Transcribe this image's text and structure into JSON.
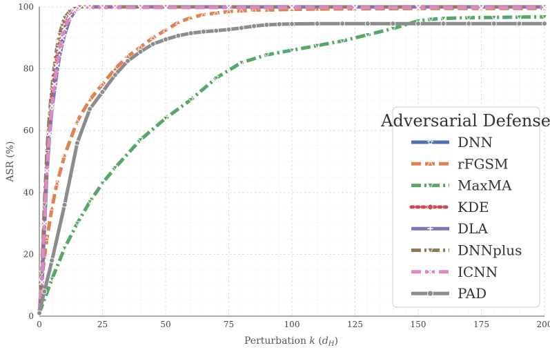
{
  "chart_data": {
    "type": "line",
    "xlabel": "Perturbation k (d_H)",
    "xlabel_parts": {
      "main": "Perturbation ",
      "var": "k",
      "open": " (",
      "sub_base": "d",
      "sub": "H",
      "close": ")"
    },
    "ylabel": "ASR (%)",
    "xlim": [
      0,
      200
    ],
    "ylim": [
      0,
      100
    ],
    "xticks": [
      0,
      25,
      50,
      75,
      100,
      125,
      150,
      175,
      200
    ],
    "yticks": [
      0,
      20,
      40,
      60,
      80,
      100
    ],
    "grid": true,
    "legend": {
      "title": "Adversarial Defense",
      "placement": "right"
    },
    "series": [
      {
        "name": "DNN",
        "color": "#4c72b0",
        "dash": "solid",
        "marker": "star",
        "x": [
          0,
          1,
          2,
          3,
          4,
          5,
          6,
          7,
          8,
          9,
          10,
          12,
          14,
          16,
          18,
          20,
          25,
          30,
          40,
          50,
          75,
          100,
          125,
          150,
          175,
          200
        ],
        "y": [
          1,
          10,
          30,
          48,
          60,
          69,
          75,
          81,
          86,
          90,
          93,
          97,
          99,
          100,
          100,
          100,
          100,
          100,
          100,
          100,
          100,
          100,
          100,
          100,
          100,
          100
        ]
      },
      {
        "name": "rFGSM",
        "color": "#dd8452",
        "dash": "dashed",
        "marker": "triangle-up",
        "x": [
          0,
          1,
          2,
          3,
          5,
          7,
          10,
          15,
          20,
          25,
          30,
          35,
          40,
          45,
          50,
          55,
          60,
          65,
          70,
          75,
          80,
          85,
          90,
          100,
          110,
          125,
          150,
          175,
          200
        ],
        "y": [
          1,
          12,
          19,
          25,
          35,
          43,
          52,
          63,
          70,
          75,
          80,
          84,
          87,
          90,
          92.5,
          95,
          96.5,
          97.5,
          98,
          98.5,
          98.7,
          99,
          99,
          99.2,
          99.3,
          99.4,
          99.5,
          99.5,
          99.5
        ]
      },
      {
        "name": "MaxMA",
        "color": "#55a868",
        "dash": "dashdot",
        "marker": "triangle-down",
        "x": [
          0,
          5,
          10,
          15,
          20,
          25,
          30,
          40,
          50,
          60,
          70,
          80,
          90,
          100,
          110,
          120,
          130,
          140,
          150,
          155,
          160,
          170,
          180,
          190,
          200
        ],
        "y": [
          1,
          12,
          22,
          30,
          37,
          43,
          48,
          57,
          64,
          70,
          77,
          82,
          84.5,
          86,
          87.5,
          89,
          91,
          93,
          95.5,
          96,
          96.3,
          96.5,
          96.6,
          96.7,
          96.8
        ]
      },
      {
        "name": "KDE",
        "color": "#c44e52",
        "dash": "dotted",
        "marker": "circle",
        "x": [
          0,
          1,
          2,
          3,
          4,
          5,
          6,
          7,
          8,
          9,
          10,
          12,
          14,
          16,
          18,
          20,
          25,
          30,
          40,
          50,
          75,
          100,
          125,
          150,
          175,
          200
        ],
        "y": [
          1,
          12,
          33,
          50,
          62,
          71,
          78,
          84,
          88,
          92,
          95,
          98,
          99.5,
          100,
          100,
          100,
          100,
          100,
          100,
          100,
          100,
          100,
          100,
          100,
          100,
          100
        ]
      },
      {
        "name": "DLA",
        "color": "#8172b3",
        "dash": "solid",
        "marker": "plus",
        "x": [
          0,
          1,
          2,
          3,
          4,
          5,
          6,
          7,
          8,
          9,
          10,
          12,
          14,
          16,
          18,
          20,
          25,
          30,
          40,
          50,
          75,
          100,
          125,
          150,
          175,
          200
        ],
        "y": [
          1,
          9,
          28,
          46,
          58,
          67,
          73,
          79,
          84,
          88,
          91,
          96,
          98.5,
          100,
          100,
          100,
          100,
          100,
          100,
          100,
          100,
          100,
          100,
          100,
          100,
          100
        ]
      },
      {
        "name": "DNNplus",
        "color": "#937860",
        "dash": "dashdot",
        "marker": "triangle-down",
        "x": [
          0,
          1,
          2,
          3,
          4,
          5,
          6,
          7,
          8,
          9,
          10,
          12,
          14,
          16,
          18,
          20,
          25,
          30,
          40,
          50,
          75,
          100,
          125,
          150,
          175,
          200
        ],
        "y": [
          1,
          14,
          36,
          53,
          65,
          74,
          81,
          87,
          91,
          94,
          96.5,
          98.5,
          99.5,
          100,
          100,
          100,
          100,
          100,
          100,
          100,
          100,
          100,
          100,
          100,
          100,
          100
        ]
      },
      {
        "name": "ICNN",
        "color": "#da8bc3",
        "dash": "dashed",
        "marker": "x",
        "x": [
          0,
          1,
          2,
          3,
          4,
          5,
          6,
          7,
          8,
          9,
          10,
          12,
          14,
          16,
          18,
          20,
          25,
          30,
          40,
          50,
          75,
          100,
          125,
          150,
          175,
          200
        ],
        "y": [
          1,
          11,
          30,
          47,
          59,
          68,
          75,
          81,
          86,
          90,
          93,
          97,
          99,
          99.6,
          99.8,
          99.8,
          99.8,
          99.8,
          99.8,
          99.8,
          99.8,
          99.8,
          99.8,
          99.8,
          99.8,
          99.8
        ]
      },
      {
        "name": "PAD",
        "color": "#8c8c8c",
        "dash": "solid",
        "marker": "circle",
        "x": [
          0,
          2,
          5,
          10,
          15,
          20,
          25,
          30,
          35,
          40,
          45,
          50,
          55,
          60,
          65,
          70,
          75,
          80,
          85,
          90,
          95,
          100,
          110,
          120,
          130,
          140,
          150,
          160,
          170,
          180,
          190,
          200
        ],
        "y": [
          1,
          8,
          18,
          36,
          56,
          67,
          72.5,
          78,
          82.5,
          85.5,
          88,
          89.5,
          90.7,
          91.5,
          92,
          92.3,
          92.7,
          93.2,
          93.8,
          94.2,
          94.4,
          94.5,
          94.6,
          94.6,
          94.6,
          94.6,
          94.6,
          94.6,
          94.6,
          94.6,
          94.6,
          94.6
        ]
      }
    ]
  }
}
